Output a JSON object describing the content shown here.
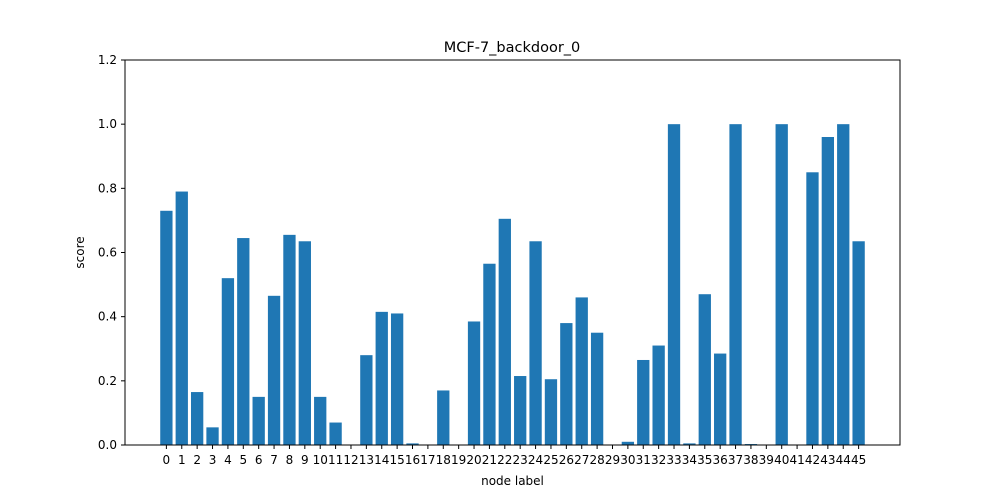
{
  "chart_data": {
    "type": "bar",
    "title": "MCF-7_backdoor_0",
    "xlabel": "node label",
    "ylabel": "score",
    "ylim": [
      0,
      1.2
    ],
    "yticks": [
      "0.0",
      "0.2",
      "0.4",
      "0.6",
      "0.8",
      "1.0",
      "1.2"
    ],
    "grid": false,
    "legend": "none",
    "bar_color": "#1f77b4",
    "categories": [
      "0",
      "1",
      "2",
      "3",
      "4",
      "5",
      "6",
      "7",
      "8",
      "9",
      "10",
      "11",
      "12",
      "13",
      "14",
      "15",
      "16",
      "17",
      "18",
      "19",
      "20",
      "21",
      "22",
      "23",
      "24",
      "25",
      "26",
      "27",
      "28",
      "29",
      "30",
      "31",
      "32",
      "33",
      "34",
      "35",
      "36",
      "37",
      "38",
      "39",
      "40",
      "41",
      "42",
      "43",
      "44",
      "45"
    ],
    "values": [
      0.73,
      0.79,
      0.165,
      0.055,
      0.52,
      0.645,
      0.15,
      0.465,
      0.655,
      0.635,
      0.15,
      0.07,
      0.0,
      0.28,
      0.415,
      0.41,
      0.005,
      0.0,
      0.17,
      0.0,
      0.385,
      0.565,
      0.705,
      0.215,
      0.635,
      0.205,
      0.38,
      0.46,
      0.35,
      0.0,
      0.01,
      0.265,
      0.31,
      1.0,
      0.005,
      0.47,
      0.285,
      1.0,
      0.003,
      0.0,
      1.0,
      0.0,
      0.85,
      0.96,
      1.0,
      0.635
    ]
  }
}
